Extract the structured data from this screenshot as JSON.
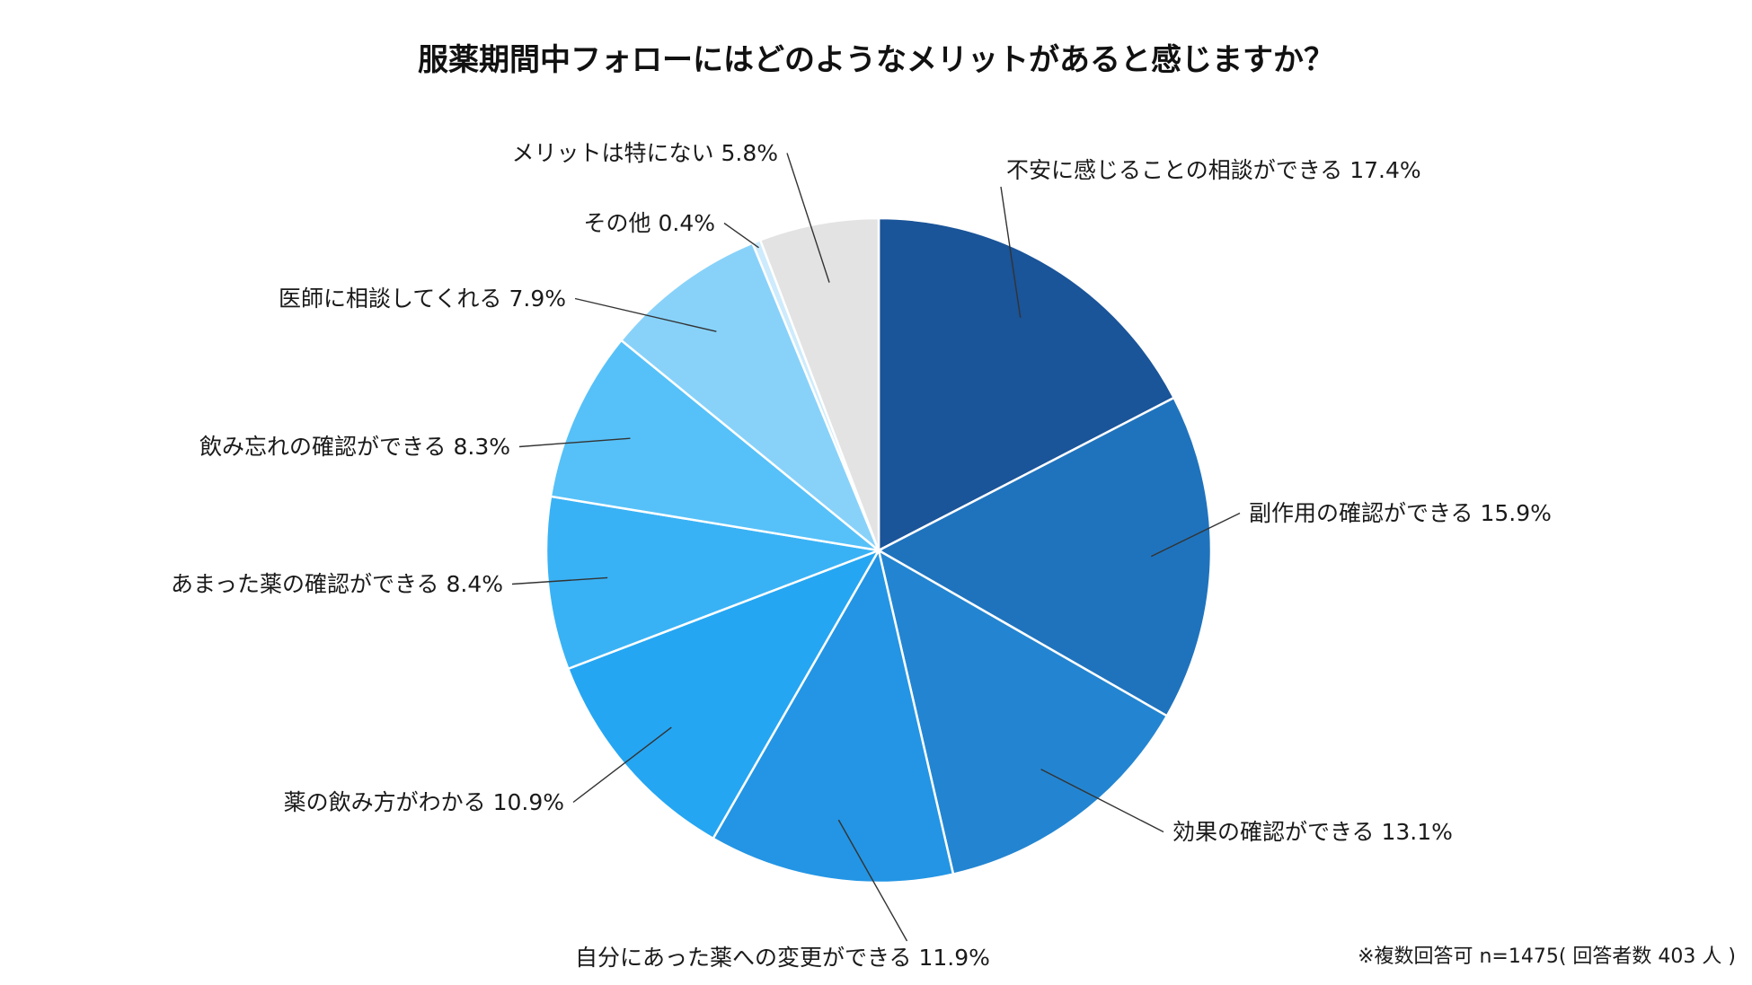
{
  "chart_data": {
    "type": "pie",
    "title": "服薬期間中フォローにはどのようなメリットがあると感じますか？",
    "footnote": "※複数回答可 n=1475( 回答者数 403 人 )",
    "start": "12 o'clock",
    "direction": "clockwise",
    "slices": [
      {
        "name": "不安に感じることの相談ができる",
        "value": 17.4,
        "label": "不安に感じることの相談ができる 17.4%",
        "color": "#1A5499"
      },
      {
        "name": "副作用の確認ができる",
        "value": 15.9,
        "label": "副作用の確認ができる 15.9%",
        "color": "#1F73BD"
      },
      {
        "name": "効果の確認ができる",
        "value": 13.1,
        "label": "効果の確認ができる 13.1%",
        "color": "#2385D1"
      },
      {
        "name": "自分にあった薬への変更ができる",
        "value": 11.9,
        "label": "自分にあった薬への変更ができる 11.9%",
        "color": "#2395E4"
      },
      {
        "name": "薬の飲み方がわかる",
        "value": 10.9,
        "label": "薬の飲み方がわかる 10.9%",
        "color": "#25A6F2"
      },
      {
        "name": "あまった薬の確認ができる",
        "value": 8.4,
        "label": "あまった薬の確認ができる 8.4%",
        "color": "#39B2F5"
      },
      {
        "name": "飲み忘れの確認ができる",
        "value": 8.3,
        "label": "飲み忘れの確認ができる 8.3%",
        "color": "#56C1F8"
      },
      {
        "name": "医師に相談してくれる",
        "value": 7.9,
        "label": "医師に相談してくれる 7.9%",
        "color": "#88D2FA"
      },
      {
        "name": "その他",
        "value": 0.4,
        "label": "その他 0.4%",
        "color": "#CDEBFC"
      },
      {
        "name": "メリットは特にない",
        "value": 5.8,
        "label": "メリットは特にない 5.8%",
        "color": "#E3E3E3"
      }
    ]
  }
}
